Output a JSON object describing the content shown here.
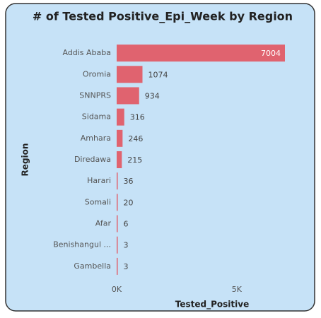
{
  "chart_data": {
    "type": "bar",
    "orientation": "horizontal",
    "title": "# of Tested Positive_Epi_Week by Region",
    "categories": [
      "Addis Ababa",
      "Oromia",
      "SNNPRS",
      "Sidama",
      "Amhara",
      "Diredawa",
      "Harari",
      "Somali",
      "Afar",
      "Benishangul ...",
      "Gambella"
    ],
    "values": [
      7004,
      1074,
      934,
      316,
      246,
      215,
      36,
      20,
      6,
      3,
      3
    ],
    "color": "#e0636f",
    "xlabel": "Tested_Positive",
    "ylabel": "Region",
    "xlim": [
      0,
      7004
    ],
    "xticks": [
      {
        "value": 0,
        "label": "0K"
      },
      {
        "value": 5000,
        "label": "5K"
      }
    ],
    "grid": false
  }
}
